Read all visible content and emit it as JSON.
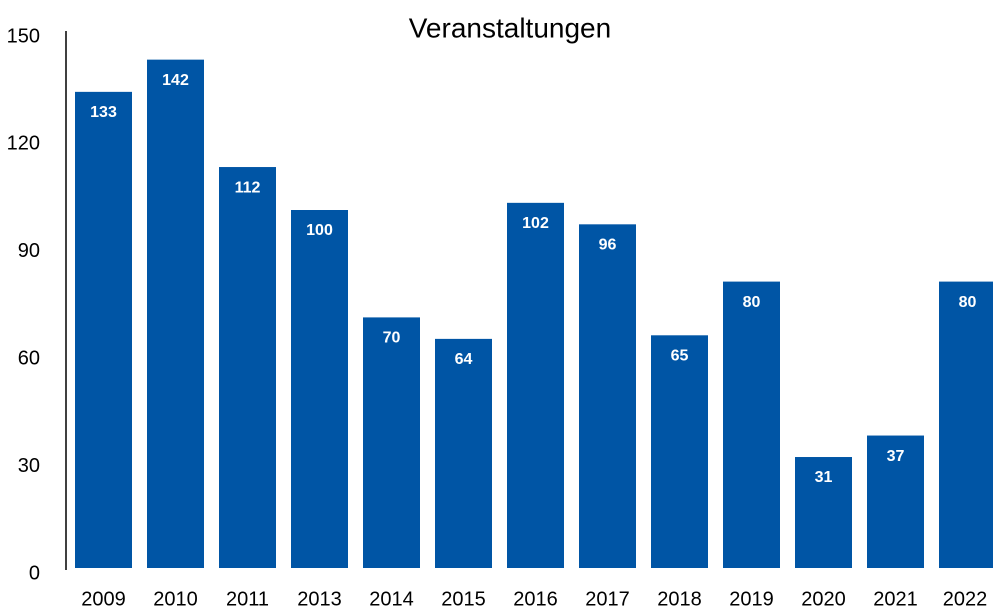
{
  "chart_data": {
    "type": "bar",
    "title": "Veranstaltungen",
    "categories": [
      "2009",
      "2010",
      "2011",
      "2013",
      "2014",
      "2015",
      "2016",
      "2017",
      "2018",
      "2019",
      "2020",
      "2021",
      "2022"
    ],
    "values": [
      133,
      142,
      112,
      100,
      70,
      64,
      102,
      96,
      65,
      80,
      31,
      37,
      80
    ],
    "color": "#0055a5",
    "ylim": [
      0,
      150
    ],
    "yticks": [
      0,
      30,
      60,
      90,
      120,
      150
    ],
    "grid": false
  }
}
